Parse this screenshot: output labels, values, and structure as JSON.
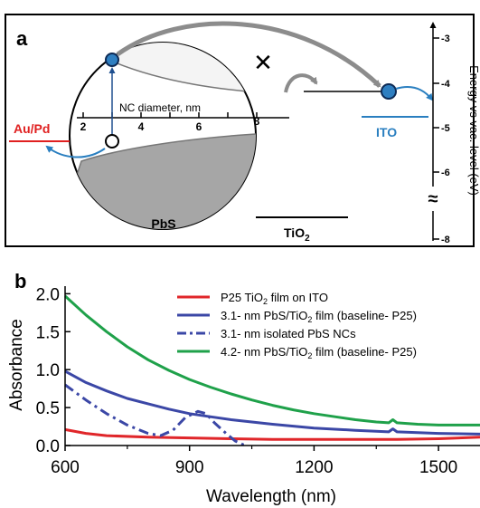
{
  "panel_a": {
    "panel_label": "a",
    "nc_axis_label": "NC diameter, nm",
    "nc_ticks": [
      "2",
      "4",
      "6",
      "8"
    ],
    "left_electrode": "Au/Pd",
    "right_electrode": "ITO",
    "material_left": "PbS",
    "material_right_base": "TiO",
    "material_right_sub": "2",
    "energy_axis_label": "Energy vs vac. level (eV)",
    "energy_ticks": [
      -3,
      -4,
      -5,
      -6,
      -8
    ],
    "axis_break_symbol": "≈",
    "blocked_symbol": "✕",
    "colors": {
      "au_pd": "#e02020",
      "ito": "#2a7fc0",
      "electron": "#1f6db5",
      "arrow_gray": "#8c8c8c",
      "hole_band": "#a6a6a6"
    }
  },
  "chart_data": {
    "type": "line",
    "panel_label": "b",
    "title": "",
    "xlabel": "Wavelength (nm)",
    "ylabel": "Absorbance",
    "xlim": [
      600,
      1600
    ],
    "ylim": [
      0.0,
      2.1
    ],
    "xticks": [
      600,
      900,
      1200,
      1500
    ],
    "yticks": [
      0.0,
      0.5,
      1.0,
      1.5,
      2.0
    ],
    "ytick_labels": [
      "0.0",
      "0.5",
      "1.0",
      "1.5",
      "2.0"
    ],
    "legend_position": "top-right",
    "grid": false,
    "series": [
      {
        "name": "P25 TiO2 film on ITO",
        "legend_parts": [
          "P25 TiO",
          "2",
          " film on ITO"
        ],
        "color": "#e0262a",
        "style": "solid",
        "x": [
          600,
          650,
          700,
          800,
          900,
          1000,
          1100,
          1200,
          1300,
          1400,
          1500,
          1600
        ],
        "y": [
          0.21,
          0.16,
          0.13,
          0.11,
          0.1,
          0.09,
          0.08,
          0.08,
          0.08,
          0.08,
          0.09,
          0.11
        ]
      },
      {
        "name": "3.1- nm PbS/TiO2 film (baseline- P25)",
        "legend_parts": [
          "3.1- nm PbS/TiO",
          "2",
          " film (baseline- P25)"
        ],
        "color": "#3b47a6",
        "style": "solid",
        "x": [
          600,
          650,
          700,
          750,
          800,
          850,
          900,
          950,
          1000,
          1100,
          1200,
          1300,
          1380,
          1390,
          1400,
          1500,
          1600
        ],
        "y": [
          0.98,
          0.83,
          0.72,
          0.62,
          0.55,
          0.48,
          0.42,
          0.38,
          0.34,
          0.28,
          0.23,
          0.2,
          0.18,
          0.22,
          0.18,
          0.16,
          0.15
        ]
      },
      {
        "name": "3.1- nm isolated PbS NCs",
        "legend_parts": [
          "3.1- nm isolated PbS NCs",
          "",
          ""
        ],
        "color": "#3b47a6",
        "style": "dashdot",
        "x": [
          600,
          650,
          700,
          750,
          800,
          830,
          860,
          890,
          920,
          940,
          960,
          990,
          1010,
          1030,
          1040
        ],
        "y": [
          0.8,
          0.6,
          0.42,
          0.27,
          0.16,
          0.13,
          0.2,
          0.37,
          0.45,
          0.42,
          0.3,
          0.15,
          0.06,
          0.01,
          0.0
        ]
      },
      {
        "name": "4.2- nm PbS/TiO2 film (baseline- P25)",
        "legend_parts": [
          "4.2- nm PbS/TiO",
          "2",
          " film (baseline- P25)"
        ],
        "color": "#1fa14a",
        "style": "solid",
        "x": [
          600,
          650,
          700,
          750,
          800,
          850,
          900,
          950,
          1000,
          1050,
          1100,
          1150,
          1200,
          1250,
          1300,
          1350,
          1380,
          1390,
          1400,
          1450,
          1500,
          1550,
          1600
        ],
        "y": [
          1.97,
          1.72,
          1.5,
          1.3,
          1.13,
          0.99,
          0.87,
          0.77,
          0.68,
          0.6,
          0.53,
          0.47,
          0.42,
          0.38,
          0.34,
          0.31,
          0.3,
          0.34,
          0.3,
          0.28,
          0.27,
          0.27,
          0.27
        ]
      }
    ]
  }
}
